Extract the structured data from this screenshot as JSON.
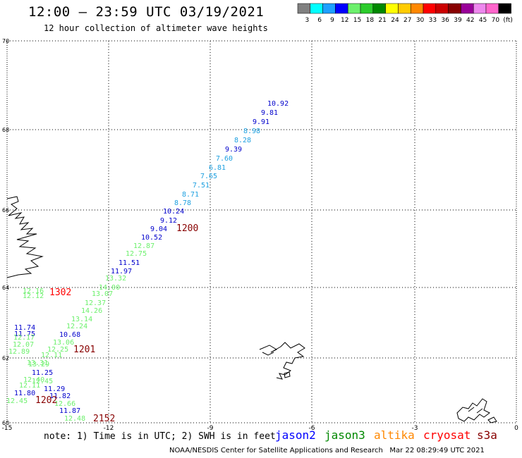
{
  "header": {
    "title": "12:00 – 23:59 UTC 03/19/2021",
    "subtitle": "12 hour collection of altimeter wave heights"
  },
  "colorbar": {
    "colors": [
      "#808080",
      "#00ffff",
      "#1ea0ff",
      "#0000ff",
      "#6cf06c",
      "#2ccc2c",
      "#008800",
      "#ffff00",
      "#ffcc00",
      "#ff8800",
      "#ff0000",
      "#cc0000",
      "#880000",
      "#990099",
      "#ee88ee",
      "#ff66cc",
      "#000000"
    ],
    "labels": [
      "3",
      "6",
      "9",
      "12",
      "15",
      "18",
      "21",
      "24",
      "27",
      "30",
      "33",
      "36",
      "39",
      "42",
      "45",
      "70",
      "(ft)"
    ]
  },
  "axes": {
    "lon_ticks": [
      "-15",
      "-12",
      "-9",
      "-6",
      "-3",
      "0"
    ],
    "lat_ticks": [
      "70",
      "68",
      "66",
      "64",
      "62",
      "60"
    ]
  },
  "tracks": {
    "cycle_times": [
      {
        "text": "1200",
        "color": "#880000"
      },
      {
        "text": "1302",
        "color": "#ff0000"
      },
      {
        "text": "1201",
        "color": "#880000"
      },
      {
        "text": "1202",
        "color": "#880000"
      },
      {
        "text": "2152",
        "color": "#880000"
      }
    ],
    "swh_labels": [
      {
        "text": "10.92",
        "color": "#0000cc"
      },
      {
        "text": "9.81",
        "color": "#0000cc"
      },
      {
        "text": "9.91",
        "color": "#0000cc"
      },
      {
        "text": "8.98",
        "color": "#1ea0e0"
      },
      {
        "text": "8.28",
        "color": "#1ea0e0"
      },
      {
        "text": "9.39",
        "color": "#0000cc"
      },
      {
        "text": "7.60",
        "color": "#1ea0e0"
      },
      {
        "text": "6.81",
        "color": "#1ea0e0"
      },
      {
        "text": "7.65",
        "color": "#1ea0e0"
      },
      {
        "text": "7.51",
        "color": "#1ea0e0"
      },
      {
        "text": "8.71",
        "color": "#1ea0e0"
      },
      {
        "text": "8.78",
        "color": "#1ea0e0"
      },
      {
        "text": "10.24",
        "color": "#0000cc"
      },
      {
        "text": "9.12",
        "color": "#0000cc"
      },
      {
        "text": "9.04",
        "color": "#0000cc"
      },
      {
        "text": "10.52",
        "color": "#0000cc"
      },
      {
        "text": "12.87",
        "color": "#6cf06c"
      },
      {
        "text": "12.75",
        "color": "#6cf06c"
      },
      {
        "text": "11.51",
        "color": "#0000cc"
      },
      {
        "text": "11.97",
        "color": "#0000cc"
      },
      {
        "text": "13.32",
        "color": "#6cf06c"
      },
      {
        "text": "14.00",
        "color": "#6cf06c"
      },
      {
        "text": "13.07",
        "color": "#6cf06c"
      },
      {
        "text": "12.37",
        "color": "#6cf06c"
      },
      {
        "text": "14.26",
        "color": "#6cf06c"
      },
      {
        "text": "13.14",
        "color": "#6cf06c"
      },
      {
        "text": "12.24",
        "color": "#6cf06c"
      },
      {
        "text": "10.68",
        "color": "#0000cc"
      },
      {
        "text": "13.06",
        "color": "#6cf06c"
      },
      {
        "text": "12.25",
        "color": "#6cf06c"
      },
      {
        "text": "12.11",
        "color": "#6cf06c"
      },
      {
        "text": "12.16",
        "color": "#6cf06c"
      },
      {
        "text": "12.12",
        "color": "#6cf06c"
      },
      {
        "text": "11.74",
        "color": "#0000cc"
      },
      {
        "text": "11.75",
        "color": "#0000cc"
      },
      {
        "text": "12.17",
        "color": "#6cf06c"
      },
      {
        "text": "12.07",
        "color": "#6cf06c"
      },
      {
        "text": "12.89",
        "color": "#6cf06c"
      },
      {
        "text": "13.31",
        "color": "#6cf06c"
      },
      {
        "text": "13.29",
        "color": "#6cf06c"
      },
      {
        "text": "11.25",
        "color": "#0000cc"
      },
      {
        "text": "12.40",
        "color": "#6cf06c"
      },
      {
        "text": "12.45",
        "color": "#6cf06c"
      },
      {
        "text": "12.11",
        "color": "#6cf06c"
      },
      {
        "text": "11.29",
        "color": "#0000cc"
      },
      {
        "text": "11.80",
        "color": "#0000cc"
      },
      {
        "text": "11.82",
        "color": "#0000cc"
      },
      {
        "text": "12.45",
        "color": "#6cf06c"
      },
      {
        "text": "12.66",
        "color": "#6cf06c"
      },
      {
        "text": "11.87",
        "color": "#0000cc"
      },
      {
        "text": "12.48",
        "color": "#6cf06c"
      }
    ]
  },
  "legend": {
    "note": "note: 1) Time is in UTC; 2) SWH is in feet",
    "missions": [
      {
        "text": "jason2",
        "color": "#0000ff"
      },
      {
        "text": "jason3",
        "color": "#008800"
      },
      {
        "text": "altika",
        "color": "#ff8800"
      },
      {
        "text": "cryosat",
        "color": "#ff0000"
      },
      {
        "text": "s3a",
        "color": "#880000"
      }
    ]
  },
  "footer": {
    "credit": "NOAA/NESDIS Center for Satellite Applications and Research",
    "timestamp": "Mar 22 08:29:49 UTC 2021"
  }
}
